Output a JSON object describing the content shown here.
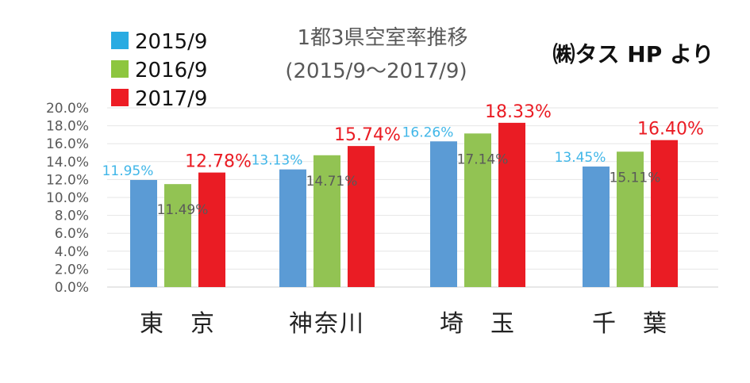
{
  "title": "1都3県空室率推移",
  "subtitle": "(2015/9～2017/9)",
  "credit": "㈱タス HP より",
  "chart_data": {
    "type": "bar",
    "categories": [
      "東　京",
      "神奈川",
      "埼　玉",
      "千　葉"
    ],
    "series": [
      {
        "name": "2015/9",
        "color": "#5b9bd5",
        "label_color": "#3fb6e8",
        "values": [
          11.95,
          13.13,
          16.26,
          13.45
        ],
        "labels": [
          "11.95%",
          "13.13%",
          "16.26%",
          "13.45%"
        ]
      },
      {
        "name": "2016/9",
        "color": "#92c353",
        "label_color": "#595959",
        "values": [
          11.49,
          14.71,
          17.14,
          15.11
        ],
        "labels": [
          "11.49%",
          "14.71%",
          "17.14%",
          "15.11%"
        ]
      },
      {
        "name": "2017/9",
        "color": "#ea1c24",
        "label_color": "#ea1c24",
        "values": [
          12.78,
          15.74,
          18.33,
          16.4
        ],
        "labels": [
          "12.78%",
          "15.74%",
          "18.33%",
          "16.40%"
        ]
      }
    ],
    "legend_colors": [
      "#29abe2",
      "#8dc63f",
      "#ed1c24"
    ],
    "yticks": [
      "0.0%",
      "2.0%",
      "4.0%",
      "6.0%",
      "8.0%",
      "10.0%",
      "12.0%",
      "14.0%",
      "16.0%",
      "18.0%",
      "20.0%"
    ],
    "ylim": [
      0,
      20
    ],
    "grid": true,
    "legend_position": "top-left"
  }
}
